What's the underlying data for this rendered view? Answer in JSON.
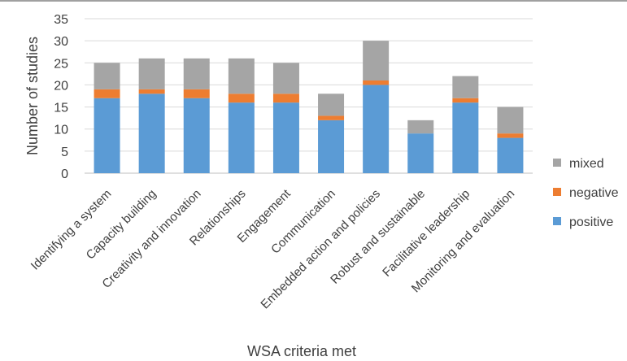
{
  "chart_data": {
    "type": "bar",
    "stacked": true,
    "title": "",
    "xlabel": "WSA criteria met",
    "ylabel": "Number of studies",
    "ylim": [
      0,
      35
    ],
    "yticks": [
      0,
      5,
      10,
      15,
      20,
      25,
      30,
      35
    ],
    "grid": true,
    "legend_position": "right",
    "categories": [
      "Identifying a system",
      "Capacity building",
      "Creativity and innovation",
      "Relationships",
      "Engagement",
      "Communication",
      "Embedded action and policies",
      "Robust and sustainable",
      "Facilitative leadership",
      "Monitoring and evaluation"
    ],
    "series": [
      {
        "name": "positive",
        "color": "#5b9bd5",
        "values": [
          17,
          18,
          17,
          16,
          16,
          12,
          20,
          9,
          16,
          8
        ]
      },
      {
        "name": "negative",
        "color": "#ed7d31",
        "values": [
          2,
          1,
          2,
          2,
          2,
          1,
          1,
          0,
          1,
          1
        ]
      },
      {
        "name": "mixed",
        "color": "#a5a5a5",
        "values": [
          6,
          7,
          7,
          8,
          7,
          5,
          9,
          3,
          5,
          6
        ]
      }
    ],
    "legend_order": [
      "mixed",
      "negative",
      "positive"
    ]
  }
}
